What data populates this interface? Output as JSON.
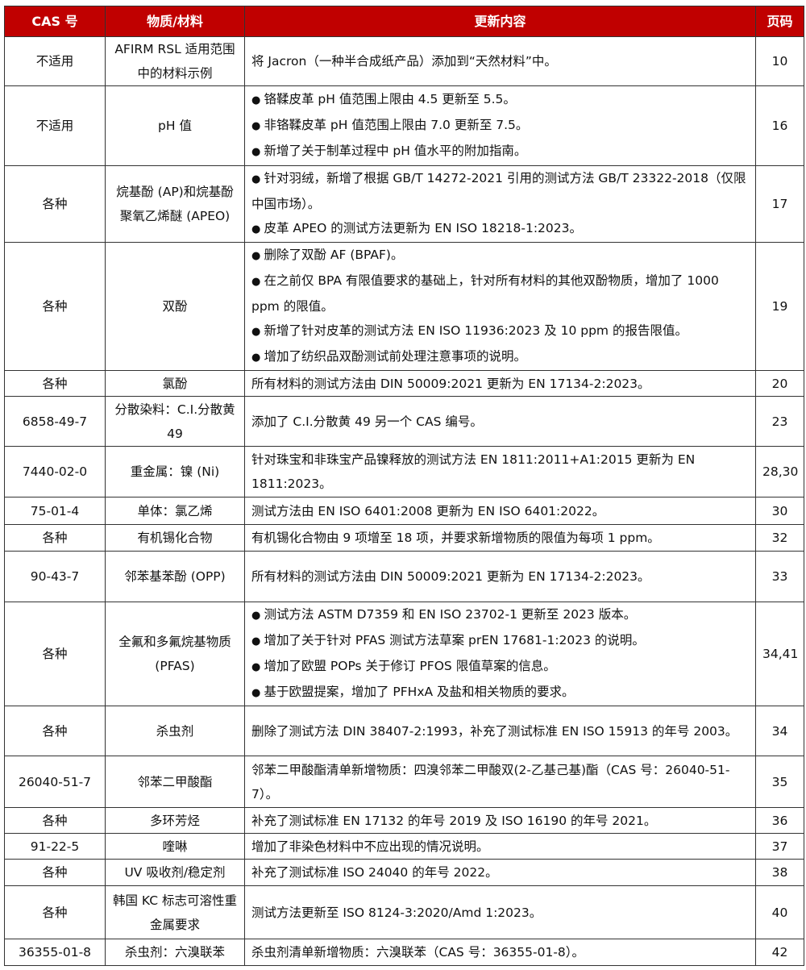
{
  "header": {
    "cas": "CAS 号",
    "material": "物质/材料",
    "content": "更新内容",
    "page": "页码"
  },
  "colors": {
    "header_bg": "#c00000"
  },
  "rows": [
    {
      "cas": "不适用",
      "material": "AFIRM RSL 适用范围中的材料示例",
      "content": "将 Jacron（一种半合成纸产品）添加到“天然材料”中。",
      "page": "10"
    },
    {
      "cas": "不适用",
      "material": "pH 值",
      "bullets": [
        "铬鞣皮革 pH 值范围上限由 4.5 更新至 5.5。",
        "非铬鞣皮革 pH 值范围上限由 7.0 更新至 7.5。",
        "新增了关于制革过程中 pH 值水平的附加指南。"
      ],
      "page": "16"
    },
    {
      "cas": "各种",
      "material": "烷基酚 (AP)和烷基酚聚氧乙烯醚 (APEO)",
      "bullets": [
        "针对羽绒，新增了根据 GB/T 14272-2021 引用的测试方法 GB/T 23322-2018（仅限中国市场）。",
        "皮革 APEO 的测试方法更新为 EN ISO 18218-1:2023。"
      ],
      "page": "17"
    },
    {
      "cas": "各种",
      "material": "双酚",
      "bullets": [
        "删除了双酚 AF (BPAF)。",
        "在之前仅 BPA 有限值要求的基础上，针对所有材料的其他双酚物质，增加了 1000 ppm 的限值。",
        "新增了针对皮革的测试方法 EN ISO 11936:2023 及 10 ppm 的报告限值。",
        "增加了纺织品双酚测试前处理注意事项的说明。"
      ],
      "page": "19"
    },
    {
      "cas": "各种",
      "material": "氯酚",
      "content": "所有材料的测试方法由 DIN 50009:2021 更新为 EN 17134-2:2023。",
      "page": "20"
    },
    {
      "cas": "6858-49-7",
      "material": "分散染料：C.I.分散黄 49",
      "content": "添加了 C.I.分散黄 49 另一个 CAS 编号。",
      "page": "23"
    },
    {
      "cas": "7440-02-0",
      "material": "重金属：镍 (Ni)",
      "content": "针对珠宝和非珠宝产品镍释放的测试方法 EN 1811:2011+A1:2015 更新为 EN 1811:2023。",
      "page": "28,30"
    },
    {
      "cas": "75-01-4",
      "material": "单体：氯乙烯",
      "content": "测试方法由 EN ISO 6401:2008 更新为 EN ISO 6401:2022。",
      "page": "30"
    },
    {
      "cas": "各种",
      "material": "有机锡化合物",
      "content": "有机锡化合物由 9 项增至 18 项，并要求新增物质的限值为每项 1 ppm。",
      "page": "32"
    },
    {
      "cas": "90-43-7",
      "material": "邻苯基苯酚 (OPP)",
      "content": "所有材料的测试方法由 DIN 50009:2021 更新为 EN 17134-2:2023。",
      "page": "33"
    },
    {
      "cas": "各种",
      "material": "全氟和多氟烷基物质 (PFAS)",
      "bullets": [
        "测试方法 ASTM D7359 和 EN ISO 23702-1 更新至 2023 版本。",
        "增加了关于针对 PFAS 测试方法草案 prEN 17681-1:2023 的说明。",
        "增加了欧盟 POPs 关于修订 PFOS 限值草案的信息。",
        "基于欧盟提案，增加了 PFHxA 及盐和相关物质的要求。"
      ],
      "page": "34,41"
    },
    {
      "cas": "各种",
      "material": "杀虫剂",
      "content": "删除了测试方法 DIN 38407-2:1993，补充了测试标准 EN ISO 15913 的年号 2003。",
      "page": "34"
    },
    {
      "cas": "26040-51-7",
      "material": "邻苯二甲酸酯",
      "content": "邻苯二甲酸酯清单新增物质：四溴邻苯二甲酸双(2-乙基己基)酯（CAS 号：26040-51-7）。",
      "page": "35"
    },
    {
      "cas": "各种",
      "material": "多环芳烃",
      "content": "补充了测试标准 EN 17132 的年号 2019 及 ISO 16190 的年号 2021。",
      "page": "36"
    },
    {
      "cas": "91-22-5",
      "material": "喹啉",
      "content": "增加了非染色材料中不应出现的情况说明。",
      "page": "37"
    },
    {
      "cas": "各种",
      "material": "UV 吸收剂/稳定剂",
      "content": "补充了测试标准 ISO 24040 的年号 2022。",
      "page": "38"
    },
    {
      "cas": "各种",
      "material": "韩国 KC 标志可溶性重金属要求",
      "content": "测试方法更新至 ISO 8124-3:2020/Amd 1:2023。",
      "page": "40"
    },
    {
      "cas": "36355-01-8",
      "material": "杀虫剂：六溴联苯",
      "content": "杀虫剂清单新增物质：六溴联苯（CAS 号：36355-01-8）。",
      "page": "42"
    }
  ]
}
